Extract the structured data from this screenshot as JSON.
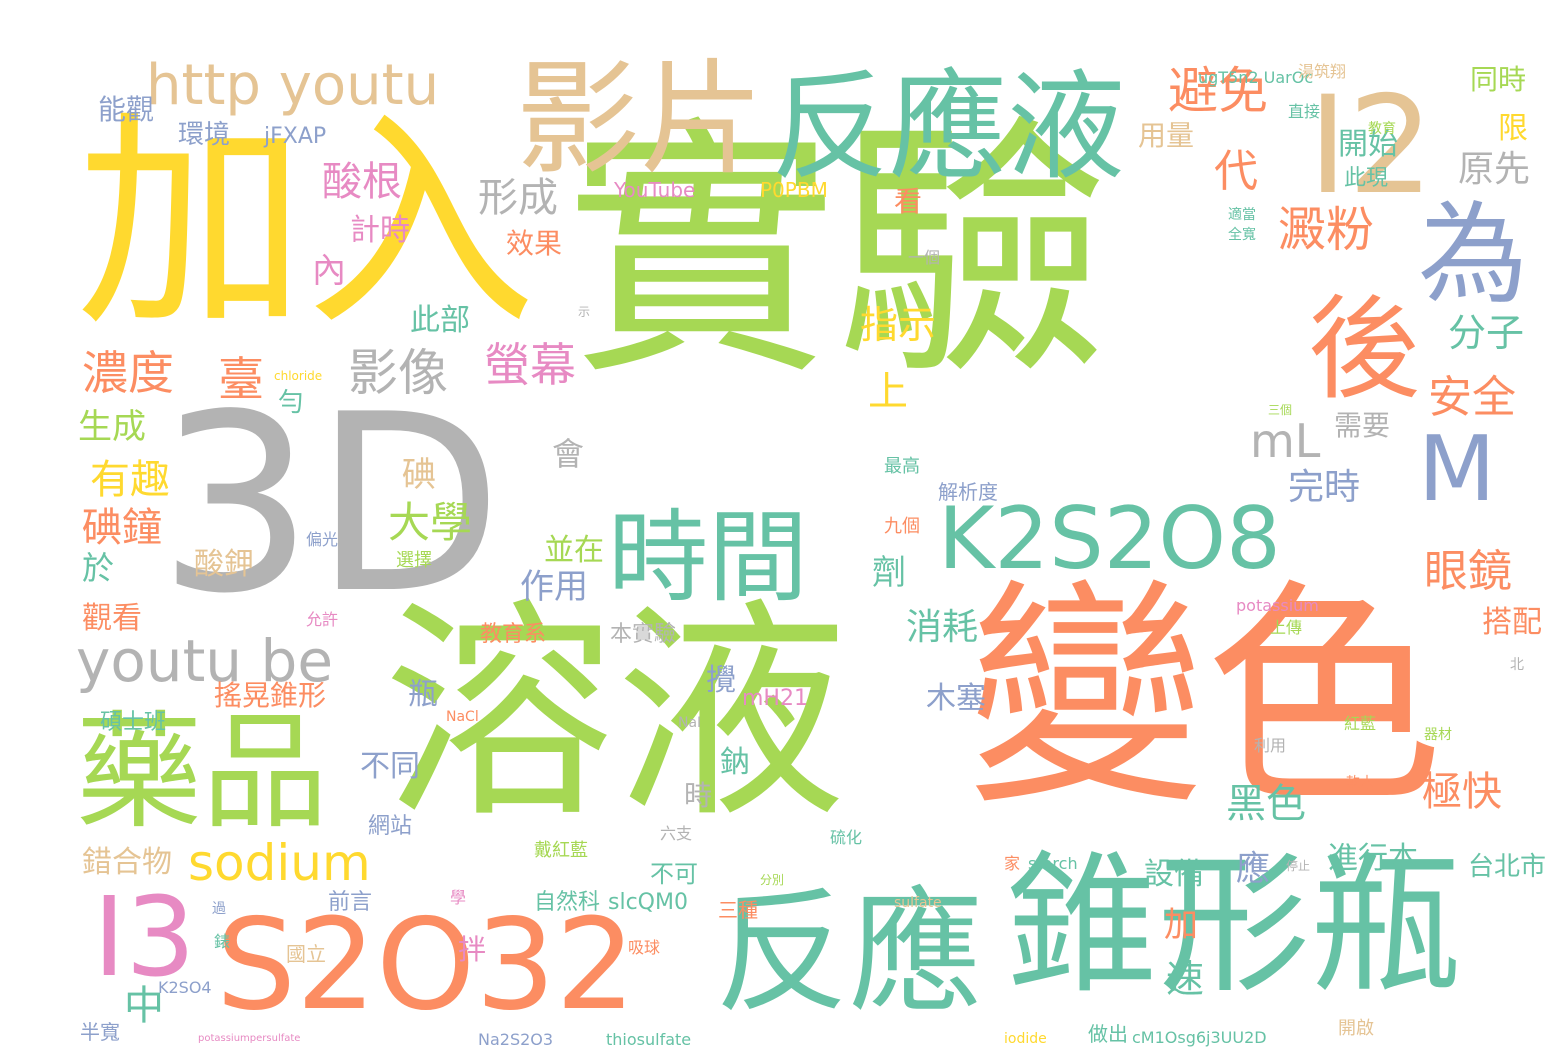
{
  "palette": {
    "green": "#a6d854",
    "teal": "#66c2a5",
    "orange": "#fc8d62",
    "yellow": "#ffd92f",
    "gray": "#b3b3b3",
    "tan": "#e5c494",
    "blue": "#8da0cb",
    "pink": "#e78ac3"
  },
  "words": [
    {
      "text": "實驗",
      "color": "green"
    },
    {
      "text": "溶液",
      "color": "green"
    },
    {
      "text": "變色",
      "color": "orange"
    },
    {
      "text": "加入",
      "color": "yellow"
    },
    {
      "text": "3D",
      "color": "gray"
    },
    {
      "text": "反應液",
      "color": "teal"
    },
    {
      "text": "影片",
      "color": "tan"
    },
    {
      "text": "I2",
      "color": "tan"
    },
    {
      "text": "http youtu",
      "color": "tan"
    },
    {
      "text": "錐形瓶",
      "color": "teal"
    },
    {
      "text": "S2O32",
      "color": "orange"
    },
    {
      "text": "反應",
      "color": "teal"
    },
    {
      "text": "K2S2O8",
      "color": "teal"
    },
    {
      "text": "時間",
      "color": "teal"
    },
    {
      "text": "藥品",
      "color": "green"
    },
    {
      "text": "M",
      "color": "blue"
    },
    {
      "text": "為",
      "color": "blue"
    },
    {
      "text": "後",
      "color": "orange"
    },
    {
      "text": "I3",
      "color": "pink"
    },
    {
      "text": "youtu be",
      "color": "gray"
    },
    {
      "text": "sodium",
      "color": "yellow"
    },
    {
      "text": "避免",
      "color": "orange"
    },
    {
      "text": "澱粉",
      "color": "orange"
    },
    {
      "text": "濃度",
      "color": "orange"
    },
    {
      "text": "臺",
      "color": "orange"
    },
    {
      "text": "影像",
      "color": "gray"
    },
    {
      "text": "螢幕",
      "color": "pink"
    },
    {
      "text": "酸根",
      "color": "pink"
    },
    {
      "text": "形成",
      "color": "gray"
    },
    {
      "text": "眼鏡",
      "color": "orange"
    },
    {
      "text": "安全",
      "color": "orange"
    },
    {
      "text": "大學",
      "color": "green"
    },
    {
      "text": "碘鐘",
      "color": "orange"
    },
    {
      "text": "有趣",
      "color": "yellow"
    },
    {
      "text": "mL",
      "color": "gray"
    },
    {
      "text": "上",
      "color": "yellow"
    },
    {
      "text": "中",
      "color": "teal"
    },
    {
      "text": "代",
      "color": "orange"
    },
    {
      "text": "同時",
      "color": "green"
    },
    {
      "text": "限",
      "color": "yellow"
    },
    {
      "text": "原先",
      "color": "gray"
    },
    {
      "text": "開始",
      "color": "teal"
    },
    {
      "text": "此現",
      "color": "teal"
    },
    {
      "text": "用量",
      "color": "tan"
    },
    {
      "text": "能觀",
      "color": "blue"
    },
    {
      "text": "環境",
      "color": "blue"
    },
    {
      "text": "jFXAP",
      "color": "blue"
    },
    {
      "text": "ugT5n2 UarOc",
      "color": "teal"
    },
    {
      "text": "YouTube",
      "color": "pink"
    },
    {
      "text": "P0PBM",
      "color": "yellow"
    },
    {
      "text": "計時",
      "color": "pink"
    },
    {
      "text": "內",
      "color": "pink"
    },
    {
      "text": "效果",
      "color": "orange"
    },
    {
      "text": "看",
      "color": "orange"
    },
    {
      "text": "指示",
      "color": "yellow"
    },
    {
      "text": "分子",
      "color": "teal"
    },
    {
      "text": "此部",
      "color": "teal"
    },
    {
      "text": "生成",
      "color": "green"
    },
    {
      "text": "勻",
      "color": "teal"
    },
    {
      "text": "碘",
      "color": "tan"
    },
    {
      "text": "會",
      "color": "gray"
    },
    {
      "text": "需要",
      "color": "gray"
    },
    {
      "text": "完時",
      "color": "blue"
    },
    {
      "text": "於",
      "color": "teal"
    },
    {
      "text": "劑",
      "color": "teal"
    },
    {
      "text": "酸鉀",
      "color": "tan"
    },
    {
      "text": "並在",
      "color": "green"
    },
    {
      "text": "作用",
      "color": "blue"
    },
    {
      "text": "觀看",
      "color": "orange"
    },
    {
      "text": "消耗",
      "color": "teal"
    },
    {
      "text": "搭配",
      "color": "orange"
    },
    {
      "text": "搖晃錐形",
      "color": "orange"
    },
    {
      "text": "碩士班",
      "color": "teal"
    },
    {
      "text": "瓶",
      "color": "blue"
    },
    {
      "text": "教育系",
      "color": "orange"
    },
    {
      "text": "本實驗",
      "color": "gray"
    },
    {
      "text": "攪",
      "color": "blue"
    },
    {
      "text": "mH21",
      "color": "pink"
    },
    {
      "text": "木塞",
      "color": "blue"
    },
    {
      "text": "不同",
      "color": "blue"
    },
    {
      "text": "鈉",
      "color": "teal"
    },
    {
      "text": "時",
      "color": "gray"
    },
    {
      "text": "極快",
      "color": "orange"
    },
    {
      "text": "黑色",
      "color": "teal"
    },
    {
      "text": "錯合物",
      "color": "tan"
    },
    {
      "text": "網站",
      "color": "blue"
    },
    {
      "text": "戴紅藍",
      "color": "green"
    },
    {
      "text": "不可",
      "color": "teal"
    },
    {
      "text": "設備",
      "color": "teal"
    },
    {
      "text": "應",
      "color": "blue"
    },
    {
      "text": "進行本",
      "color": "teal"
    },
    {
      "text": "台北市",
      "color": "teal"
    },
    {
      "text": "前言",
      "color": "blue"
    },
    {
      "text": "自然科",
      "color": "teal"
    },
    {
      "text": "slcQM0",
      "color": "teal"
    },
    {
      "text": "三種",
      "color": "orange"
    },
    {
      "text": "加",
      "color": "orange"
    },
    {
      "text": "速",
      "color": "teal"
    },
    {
      "text": "國立",
      "color": "tan"
    },
    {
      "text": "拌",
      "color": "pink"
    },
    {
      "text": "吸球",
      "color": "orange"
    },
    {
      "text": "K2SO4",
      "color": "blue"
    },
    {
      "text": "半寬",
      "color": "blue"
    },
    {
      "text": "Na2S2O3",
      "color": "blue"
    },
    {
      "text": "thiosulfate",
      "color": "teal"
    },
    {
      "text": "做出",
      "color": "teal"
    },
    {
      "text": "cM1Osg6j3UU2D",
      "color": "teal"
    },
    {
      "text": "開啟",
      "color": "tan"
    },
    {
      "text": "iodide",
      "color": "yellow"
    },
    {
      "text": "potassiumpersulfate",
      "color": "pink"
    },
    {
      "text": "starch",
      "color": "teal"
    },
    {
      "text": "sulfate",
      "color": "tan"
    },
    {
      "text": "potassium",
      "color": "pink"
    },
    {
      "text": "NaCl",
      "color": "orange"
    },
    {
      "text": "NaI",
      "color": "gray"
    },
    {
      "text": "chloride",
      "color": "yellow"
    },
    {
      "text": "解析度",
      "color": "blue"
    },
    {
      "text": "最高",
      "color": "teal"
    },
    {
      "text": "九個",
      "color": "orange"
    },
    {
      "text": "選擇",
      "color": "green"
    },
    {
      "text": "偏光",
      "color": "blue"
    },
    {
      "text": "允許",
      "color": "pink"
    },
    {
      "text": "上傳",
      "color": "green"
    },
    {
      "text": "紅藍",
      "color": "green"
    },
    {
      "text": "器材",
      "color": "green"
    },
    {
      "text": "軟木",
      "color": "orange"
    },
    {
      "text": "利用",
      "color": "gray"
    },
    {
      "text": "硫化",
      "color": "teal"
    },
    {
      "text": "六支",
      "color": "gray"
    },
    {
      "text": "一個",
      "color": "gray"
    },
    {
      "text": "直接",
      "color": "teal"
    },
    {
      "text": "教育",
      "color": "green"
    },
    {
      "text": "適當",
      "color": "teal"
    },
    {
      "text": "全寬",
      "color": "teal"
    },
    {
      "text": "湯筑翔",
      "color": "tan"
    },
    {
      "text": "三個",
      "color": "green"
    },
    {
      "text": "北",
      "color": "gray"
    },
    {
      "text": "分別",
      "color": "green"
    },
    {
      "text": "停止",
      "color": "gray"
    },
    {
      "text": "錶",
      "color": "teal"
    },
    {
      "text": "過",
      "color": "blue"
    },
    {
      "text": "學",
      "color": "pink"
    },
    {
      "text": "家",
      "color": "orange"
    },
    {
      "text": "示",
      "color": "gray"
    }
  ]
}
